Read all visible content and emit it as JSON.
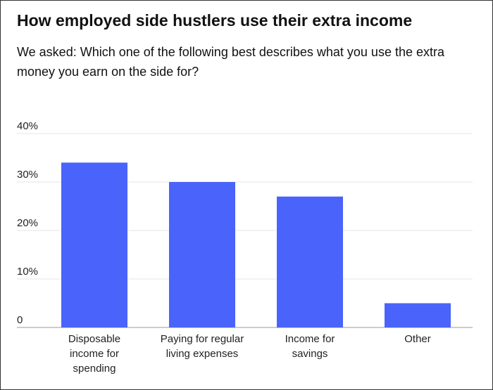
{
  "chart_data": {
    "type": "bar",
    "title": "How employed side hustlers use their extra income",
    "subtitle": "We asked: Which one of the following best describes what you use the extra money you earn on the side for?",
    "categories": [
      [
        "Disposable",
        "income for",
        "spending"
      ],
      [
        "Paying for regular",
        "living expenses"
      ],
      [
        "Income for",
        "savings"
      ],
      [
        "Other"
      ]
    ],
    "values": [
      34,
      30,
      27,
      5
    ],
    "yticks": [
      0,
      10,
      20,
      30,
      40
    ],
    "ytick_labels": [
      "0",
      "10%",
      "20%",
      "30%",
      "40%"
    ],
    "ylim": [
      0,
      40
    ],
    "xlabel": "",
    "ylabel": "",
    "grid": true,
    "legend": "none",
    "colors": {
      "bar": "#4a63fa",
      "grid": "#e6e6e6",
      "axis": "#cccccc"
    }
  }
}
